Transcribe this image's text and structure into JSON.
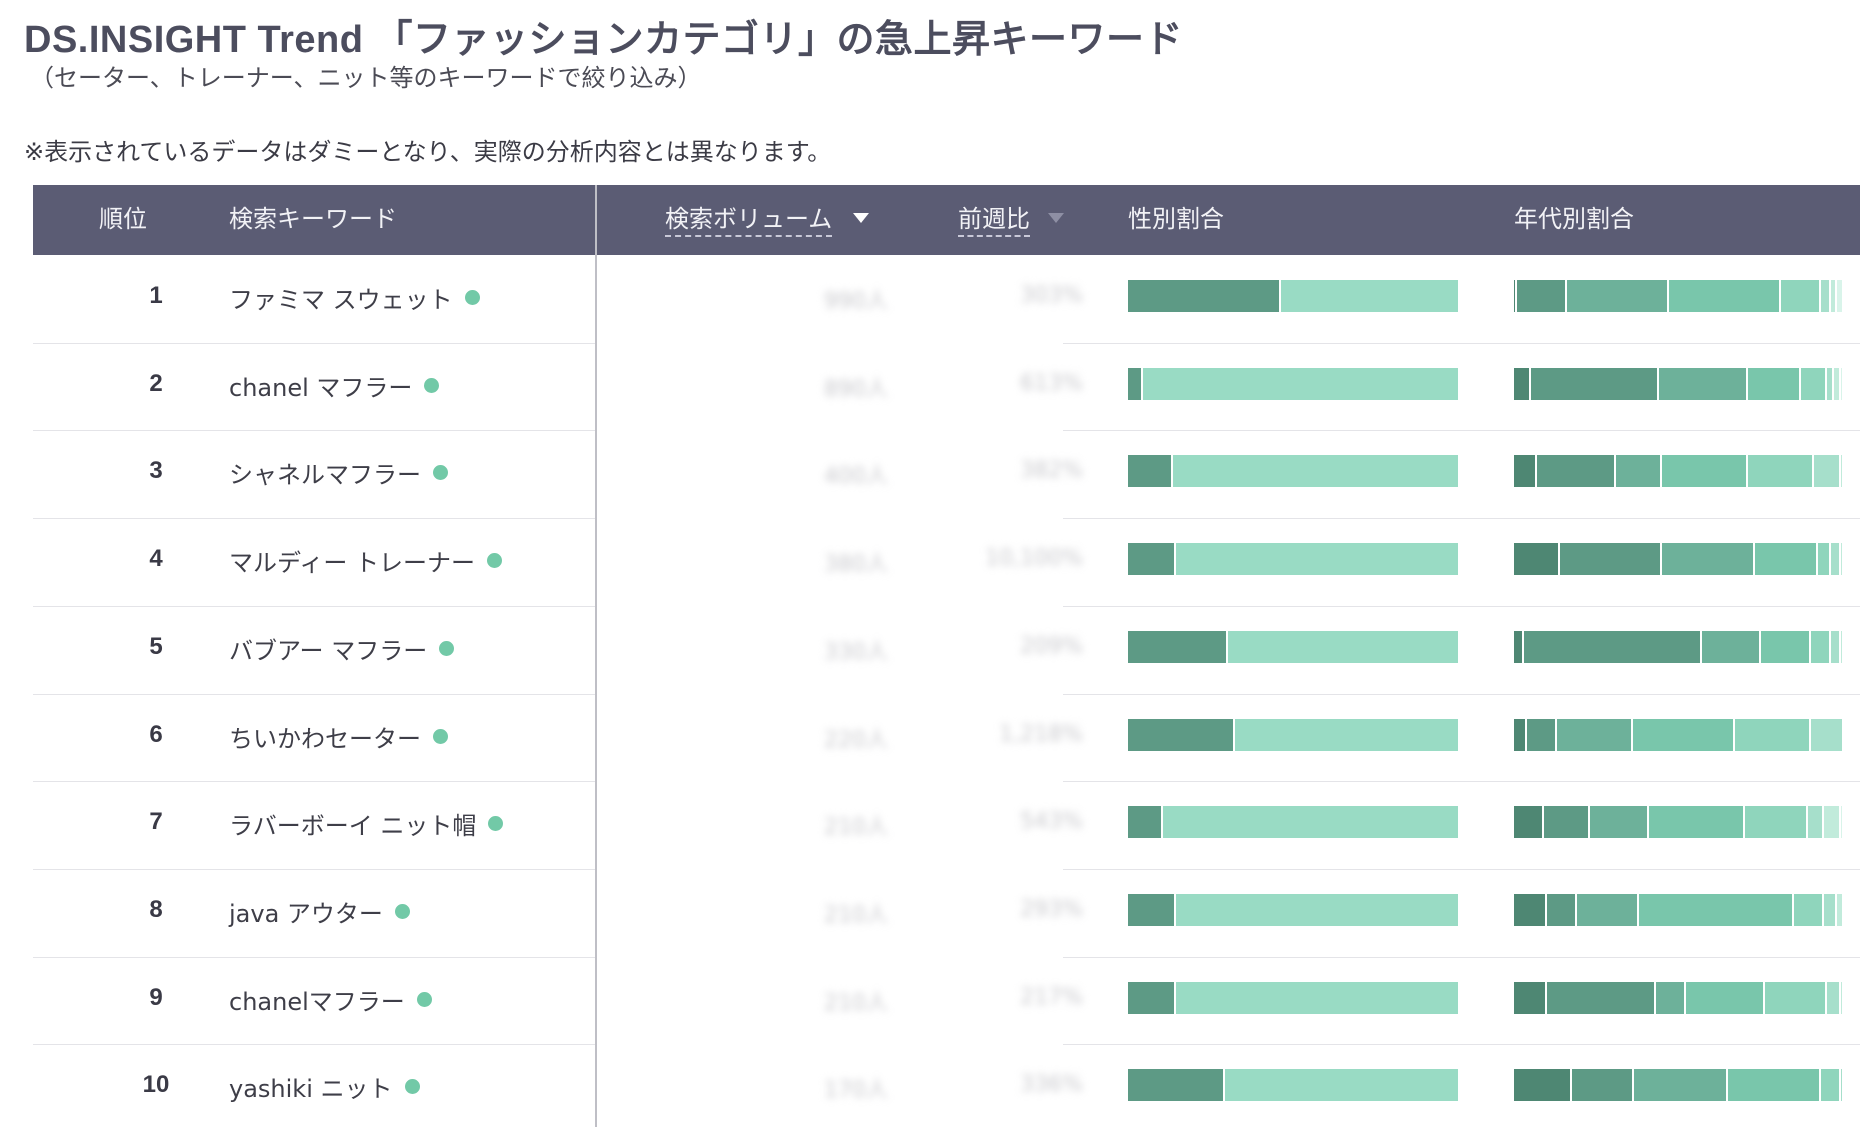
{
  "header": {
    "title": "DS.INSIGHT Trend 「ファッションカテゴリ」の急上昇キーワード",
    "subtitle": "（セーター、トレーナー、ニット等のキーワードで絞り込み）",
    "note": "※表示されているデータはダミーとなり、実際の分析内容とは異なります。"
  },
  "table": {
    "columns": {
      "rank": "順位",
      "keyword": "検索キーワード",
      "volume": "検索ボリューム",
      "wow": "前週比",
      "gender": "性別割合",
      "age": "年代別割合"
    },
    "colors": {
      "header_bg": "#5b5c74",
      "dot": "#72c9a7",
      "gender": [
        "#5d9a85",
        "#99dbc4"
      ],
      "age": [
        "#4e8773",
        "#5d9a85",
        "#6db19a",
        "#79c6ab",
        "#8fd5bc",
        "#a6dfcb",
        "#c1ebdb",
        "#d9f4ea"
      ]
    },
    "rows": [
      {
        "rank": "1",
        "keyword": "ファミマ スウェット",
        "volume": "990人",
        "wow": "303%",
        "gender": [
          0.46,
          0.54
        ],
        "age": [
          0.01,
          0.15,
          0.31,
          0.34,
          0.12,
          0.03,
          0.02,
          0.02
        ]
      },
      {
        "rank": "2",
        "keyword": "chanel マフラー",
        "volume": "890人",
        "wow": "613%",
        "gender": [
          0.04,
          0.96
        ],
        "age": [
          0.05,
          0.39,
          0.27,
          0.16,
          0.08,
          0.02,
          0.02,
          0.01
        ]
      },
      {
        "rank": "3",
        "keyword": "シャネルマフラー",
        "volume": "400人",
        "wow": "382%",
        "gender": [
          0.13,
          0.87
        ],
        "age": [
          0.07,
          0.24,
          0.14,
          0.26,
          0.2,
          0.08,
          0.01,
          0.0
        ]
      },
      {
        "rank": "4",
        "keyword": "マルディー トレーナー",
        "volume": "380人",
        "wow": "10,100%",
        "gender": [
          0.14,
          0.86
        ],
        "age": [
          0.14,
          0.31,
          0.28,
          0.19,
          0.04,
          0.03,
          0.01,
          0.0
        ]
      },
      {
        "rank": "5",
        "keyword": "バブアー マフラー",
        "volume": "330人",
        "wow": "209%",
        "gender": [
          0.3,
          0.7
        ],
        "age": [
          0.03,
          0.54,
          0.18,
          0.15,
          0.06,
          0.03,
          0.01,
          0.0
        ]
      },
      {
        "rank": "6",
        "keyword": "ちいかわセーター",
        "volume": "220人",
        "wow": "1,218%",
        "gender": [
          0.32,
          0.68
        ],
        "age": [
          0.04,
          0.09,
          0.23,
          0.31,
          0.23,
          0.1,
          0.0,
          0.0
        ]
      },
      {
        "rank": "7",
        "keyword": "ラバーボーイ ニット帽",
        "volume": "210人",
        "wow": "543%",
        "gender": [
          0.1,
          0.9
        ],
        "age": [
          0.09,
          0.14,
          0.18,
          0.29,
          0.19,
          0.05,
          0.05,
          0.01
        ]
      },
      {
        "rank": "8",
        "keyword": "java アウター",
        "volume": "210人",
        "wow": "293%",
        "gender": [
          0.14,
          0.86
        ],
        "age": [
          0.1,
          0.09,
          0.19,
          0.47,
          0.09,
          0.04,
          0.02,
          0.0
        ]
      },
      {
        "rank": "9",
        "keyword": "chanelマフラー",
        "volume": "210人",
        "wow": "217%",
        "gender": [
          0.14,
          0.86
        ],
        "age": [
          0.1,
          0.33,
          0.09,
          0.24,
          0.19,
          0.04,
          0.01,
          0.0
        ]
      },
      {
        "rank": "10",
        "keyword": "yashiki ニット",
        "volume": "170人",
        "wow": "336%",
        "gender": [
          0.29,
          0.71
        ],
        "age": [
          0.18,
          0.19,
          0.29,
          0.29,
          0.06,
          0.01,
          0.0,
          0.0
        ]
      }
    ]
  }
}
